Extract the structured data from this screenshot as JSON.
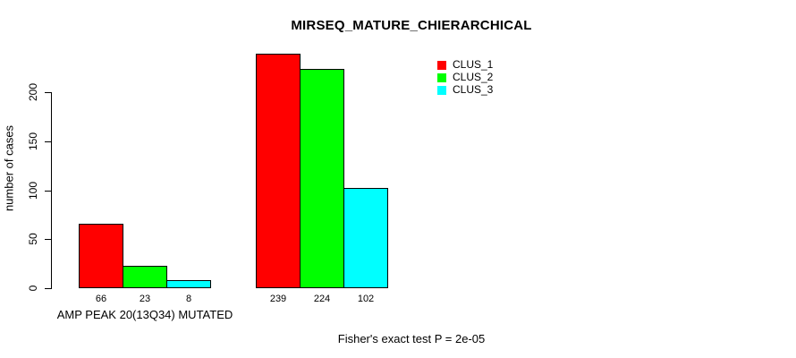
{
  "title": "MIRSEQ_MATURE_CHIERARCHICAL",
  "footer": "Fisher's exact test P = 2e-05",
  "chart_data": {
    "type": "bar",
    "title": "MIRSEQ_MATURE_CHIERARCHICAL",
    "xlabel": "",
    "ylabel": "number of cases",
    "groups": [
      "AMP PEAK 20(13Q34) MUTATED",
      ""
    ],
    "series": [
      {
        "name": "CLUS_1",
        "color": "#ff0000",
        "values": [
          66,
          239
        ]
      },
      {
        "name": "CLUS_2",
        "color": "#00ff00",
        "values": [
          23,
          224
        ]
      },
      {
        "name": "CLUS_3",
        "color": "#00ffff",
        "values": [
          8,
          102
        ]
      }
    ],
    "bar_value_labels": [
      [
        66,
        23,
        8
      ],
      [
        239,
        224,
        102
      ]
    ],
    "y_ticks": [
      0,
      50,
      100,
      150,
      200
    ],
    "ylim": [
      0,
      240
    ],
    "grid": false,
    "legend_position": "top-right",
    "annotation": "Fisher's exact test P = 2e-05",
    "axis_color": "#000000",
    "background_color": "#ffffff"
  }
}
